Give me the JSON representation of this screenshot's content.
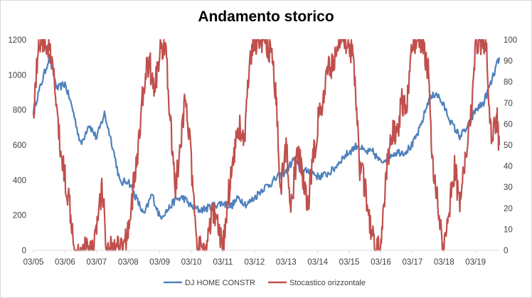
{
  "chart_data": {
    "type": "line",
    "title": "Andamento storico",
    "x_categories": [
      "03/05",
      "03/06",
      "03/07",
      "03/08",
      "03/09",
      "03/10",
      "03/11",
      "03/12",
      "03/13",
      "03/14",
      "03/15",
      "03/16",
      "03/17",
      "03/18",
      "03/19"
    ],
    "y_left": {
      "ticks": [
        0,
        200,
        400,
        600,
        800,
        1000,
        1200
      ],
      "range": [
        0,
        1200
      ]
    },
    "y_right": {
      "ticks": [
        0,
        10,
        20,
        30,
        40,
        50,
        60,
        70,
        80,
        90,
        100
      ],
      "range": [
        0,
        100
      ]
    },
    "grid": false,
    "legend_position": "bottom",
    "colors": {
      "dj": "#4f81bd",
      "stoc": "#c0504d"
    },
    "series": [
      {
        "name": "DJ HOME CONSTR",
        "axis": "left",
        "x": [
          "2005-03",
          "2005-06",
          "2005-09",
          "2005-12",
          "2006-03",
          "2006-06",
          "2006-09",
          "2006-12",
          "2007-03",
          "2007-06",
          "2007-09",
          "2007-12",
          "2008-03",
          "2008-06",
          "2008-09",
          "2008-12",
          "2009-03",
          "2009-06",
          "2009-09",
          "2009-12",
          "2010-03",
          "2010-06",
          "2010-09",
          "2010-12",
          "2011-03",
          "2011-06",
          "2011-09",
          "2011-12",
          "2012-03",
          "2012-06",
          "2012-09",
          "2012-12",
          "2013-03",
          "2013-06",
          "2013-09",
          "2013-12",
          "2014-03",
          "2014-06",
          "2014-09",
          "2014-12",
          "2015-03",
          "2015-06",
          "2015-09",
          "2015-12",
          "2016-03",
          "2016-06",
          "2016-09",
          "2016-12",
          "2017-03",
          "2017-06",
          "2017-09",
          "2017-12",
          "2018-03",
          "2018-06",
          "2018-09",
          "2018-12",
          "2019-03",
          "2019-06",
          "2019-09",
          "2019-12"
        ],
        "values": [
          800,
          950,
          1100,
          920,
          950,
          800,
          600,
          720,
          640,
          780,
          600,
          380,
          400,
          300,
          200,
          320,
          190,
          230,
          290,
          300,
          250,
          230,
          240,
          260,
          270,
          250,
          300,
          260,
          300,
          350,
          380,
          420,
          450,
          520,
          440,
          460,
          420,
          430,
          460,
          520,
          560,
          600,
          560,
          560,
          500,
          540,
          560,
          560,
          600,
          700,
          850,
          900,
          820,
          720,
          650,
          700,
          800,
          840,
          960,
          1100
        ]
      },
      {
        "name": "Stocastico orizzontale",
        "axis": "right",
        "x": [
          "2005-03",
          "2005-05",
          "2005-07",
          "2005-09",
          "2005-11",
          "2006-01",
          "2006-03",
          "2006-05",
          "2006-07",
          "2006-09",
          "2006-11",
          "2007-01",
          "2007-03",
          "2007-05",
          "2007-07",
          "2007-09",
          "2007-11",
          "2008-01",
          "2008-03",
          "2008-05",
          "2008-07",
          "2008-09",
          "2008-11",
          "2009-01",
          "2009-03",
          "2009-05",
          "2009-07",
          "2009-09",
          "2009-11",
          "2010-01",
          "2010-03",
          "2010-05",
          "2010-07",
          "2010-09",
          "2010-11",
          "2011-01",
          "2011-03",
          "2011-05",
          "2011-07",
          "2011-09",
          "2011-11",
          "2012-01",
          "2012-03",
          "2012-05",
          "2012-07",
          "2012-09",
          "2012-11",
          "2013-01",
          "2013-03",
          "2013-05",
          "2013-07",
          "2013-09",
          "2013-11",
          "2014-01",
          "2014-03",
          "2014-05",
          "2014-07",
          "2014-09",
          "2014-11",
          "2015-01",
          "2015-03",
          "2015-05",
          "2015-07",
          "2015-09",
          "2015-11",
          "2016-01",
          "2016-03",
          "2016-05",
          "2016-07",
          "2016-09",
          "2016-11",
          "2017-01",
          "2017-03",
          "2017-05",
          "2017-07",
          "2017-09",
          "2017-11",
          "2018-01",
          "2018-03",
          "2018-05",
          "2018-07",
          "2018-09",
          "2018-11",
          "2019-01",
          "2019-03",
          "2019-05",
          "2019-07",
          "2019-09",
          "2019-11",
          "2019-12"
        ],
        "values": [
          65,
          100,
          100,
          95,
          80,
          50,
          35,
          20,
          0,
          0,
          0,
          0,
          10,
          30,
          0,
          0,
          0,
          0,
          10,
          30,
          50,
          80,
          90,
          75,
          95,
          100,
          60,
          30,
          50,
          75,
          40,
          0,
          0,
          0,
          20,
          10,
          0,
          25,
          45,
          60,
          50,
          85,
          100,
          100,
          100,
          95,
          75,
          30,
          50,
          20,
          45,
          40,
          20,
          40,
          60,
          70,
          85,
          90,
          100,
          100,
          100,
          85,
          40,
          30,
          10,
          0,
          0,
          35,
          55,
          55,
          70,
          70,
          100,
          100,
          100,
          85,
          35,
          20,
          0,
          20,
          40,
          20,
          45,
          60,
          100,
          100,
          100,
          50,
          65,
          50
        ]
      }
    ]
  }
}
